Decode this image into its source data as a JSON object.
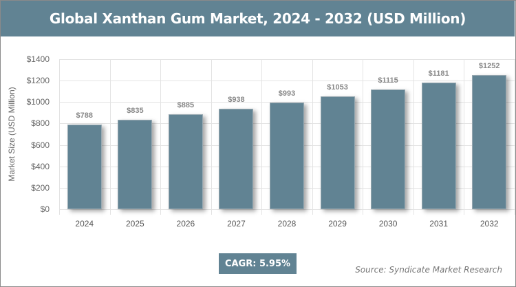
{
  "header": {
    "title": "Global Xanthan Gum Market, 2024 - 2032 (USD Million)"
  },
  "footer": {
    "cagr": "CAGR: 5.95%",
    "source": "Source: Syndicate Market Research"
  },
  "colors": {
    "bar": "#618393",
    "header": "#618393"
  },
  "chart_data": {
    "type": "bar",
    "title": "Global Xanthan Gum Market, 2024 - 2032 (USD Million)",
    "xlabel": "",
    "ylabel": "Market Size (USD Million)",
    "categories": [
      "2024",
      "2025",
      "2026",
      "2027",
      "2028",
      "2029",
      "2030",
      "2031",
      "2032"
    ],
    "values": [
      788,
      835,
      885,
      938,
      993,
      1053,
      1115,
      1181,
      1252
    ],
    "value_labels": [
      "$788",
      "$835",
      "$885",
      "$938",
      "$993",
      "$1053",
      "$1115",
      "$1181",
      "$1252"
    ],
    "ylim": [
      0,
      1400
    ],
    "yticks": [
      0,
      200,
      400,
      600,
      800,
      1000,
      1200,
      1400
    ],
    "ytick_labels": [
      "$0",
      "$200",
      "$400",
      "$600",
      "$800",
      "$1000",
      "$1200",
      "$1400"
    ],
    "grid": true,
    "legend": null,
    "annotations": [
      "CAGR: 5.95%",
      "Source: Syndicate Market Research"
    ]
  }
}
